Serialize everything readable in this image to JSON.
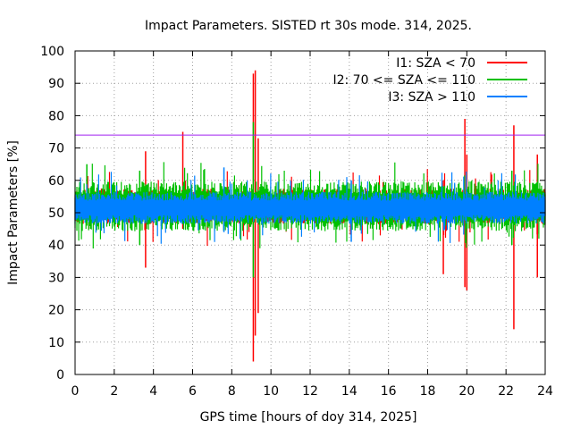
{
  "chart_data": {
    "type": "line",
    "title": "Impact Parameters. SISTED rt 30s mode. 314, 2025.",
    "xlabel": "GPS time [hours of doy 314, 2025]",
    "ylabel": "Impact Parameters [%]",
    "xlim": [
      0,
      24
    ],
    "ylim": [
      0,
      100
    ],
    "x_ticks": [
      "0",
      "2",
      "4",
      "6",
      "8",
      "10",
      "12",
      "14",
      "16",
      "18",
      "20",
      "22",
      "24"
    ],
    "y_ticks": [
      "0",
      "10",
      "20",
      "30",
      "40",
      "50",
      "60",
      "70",
      "80",
      "90",
      "100"
    ],
    "grid": true,
    "legend_position": "top-right",
    "threshold": {
      "value": 74,
      "color": "#a020f0"
    },
    "series": [
      {
        "name": "I1: SZA < 70",
        "color": "#ff0000",
        "band": [
          47,
          57
        ],
        "spikes": [
          {
            "x": 3.6,
            "lo": 33,
            "hi": 69
          },
          {
            "x": 5.5,
            "lo": 45,
            "hi": 75
          },
          {
            "x": 9.1,
            "lo": 4,
            "hi": 93
          },
          {
            "x": 9.2,
            "lo": 12,
            "hi": 94
          },
          {
            "x": 9.35,
            "lo": 19,
            "hi": 73
          },
          {
            "x": 18.8,
            "lo": 31,
            "hi": 60
          },
          {
            "x": 19.9,
            "lo": 27,
            "hi": 79
          },
          {
            "x": 20.0,
            "lo": 26,
            "hi": 68
          },
          {
            "x": 22.4,
            "lo": 14,
            "hi": 77
          },
          {
            "x": 23.6,
            "lo": 30,
            "hi": 68
          }
        ]
      },
      {
        "name": "I2: 70 <= SZA <= 110",
        "color": "#00c000",
        "band": [
          45,
          59
        ],
        "spikes": [
          {
            "x": 0.6,
            "lo": 46,
            "hi": 65
          },
          {
            "x": 3.3,
            "lo": 40,
            "hi": 63
          },
          {
            "x": 9.1,
            "lo": 30,
            "hi": 78
          },
          {
            "x": 22.3,
            "lo": 40,
            "hi": 63
          }
        ]
      },
      {
        "name": "I3: SZA > 110",
        "color": "#0080ff",
        "band": [
          47,
          56
        ],
        "spikes": [
          {
            "x": 7.6,
            "lo": 44,
            "hi": 64
          },
          {
            "x": 14.1,
            "lo": 41,
            "hi": 60
          }
        ]
      }
    ]
  }
}
